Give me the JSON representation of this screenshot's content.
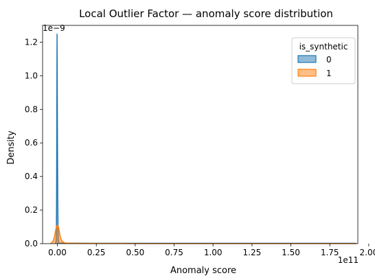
{
  "chart_data": {
    "type": "area",
    "title": "Local Outlier Factor — anomaly score distribution",
    "xlabel": "Anomaly score",
    "ylabel": "Density",
    "x_offset_label": "1e11",
    "y_offset_label": "1e−9",
    "x_scale_exponent": 11,
    "y_scale_exponent": -9,
    "xlim": [
      -0.095,
      1.93
    ],
    "ylim": [
      0,
      1.3
    ],
    "x_ticks": [
      0.0,
      0.25,
      0.5,
      0.75,
      1.0,
      1.25,
      1.5,
      1.75,
      2.0
    ],
    "x_tick_labels": [
      "0.00",
      "0.25",
      "0.50",
      "0.75",
      "1.00",
      "1.25",
      "1.50",
      "1.75",
      "2.00"
    ],
    "y_ticks": [
      0.0,
      0.2,
      0.4,
      0.6,
      0.8,
      1.0,
      1.2
    ],
    "y_tick_labels": [
      "0.0",
      "0.2",
      "0.4",
      "0.6",
      "0.8",
      "1.0",
      "1.2"
    ],
    "grid": false,
    "legend": {
      "title": "is_synthetic",
      "placement": "top-right"
    },
    "series": [
      {
        "name": "0",
        "color": "#1f77b4",
        "x": [
          -0.012,
          -0.009,
          -0.007,
          -0.006,
          -0.005,
          -0.004,
          -0.003,
          -0.002,
          -0.001,
          0.0,
          0.001,
          0.002,
          0.003,
          0.004,
          0.005,
          0.006,
          0.007,
          0.009,
          0.012,
          0.05,
          0.25,
          0.75,
          1.25,
          1.75,
          1.92
        ],
        "y": [
          0.0,
          0.01,
          0.04,
          0.12,
          0.3,
          0.6,
          0.98,
          1.25,
          1.05,
          0.78,
          0.55,
          0.36,
          0.22,
          0.12,
          0.06,
          0.03,
          0.015,
          0.005,
          0.003,
          0.003,
          0.002,
          0.002,
          0.002,
          0.002,
          0.002
        ]
      },
      {
        "name": "1",
        "color": "#ff7f0e",
        "x": [
          -0.045,
          -0.035,
          -0.025,
          -0.018,
          -0.012,
          -0.008,
          -0.004,
          0.0,
          0.004,
          0.008,
          0.012,
          0.018,
          0.025,
          0.035,
          0.045,
          0.06,
          0.1,
          0.15,
          0.25,
          0.4,
          0.5,
          1.0,
          1.5,
          1.92
        ],
        "y": [
          0.0,
          0.005,
          0.02,
          0.045,
          0.075,
          0.095,
          0.107,
          0.11,
          0.107,
          0.095,
          0.075,
          0.045,
          0.022,
          0.01,
          0.005,
          0.003,
          0.002,
          0.002,
          0.001,
          0.001,
          0.0005,
          0.0005,
          0.0003,
          0.0003
        ]
      }
    ]
  }
}
